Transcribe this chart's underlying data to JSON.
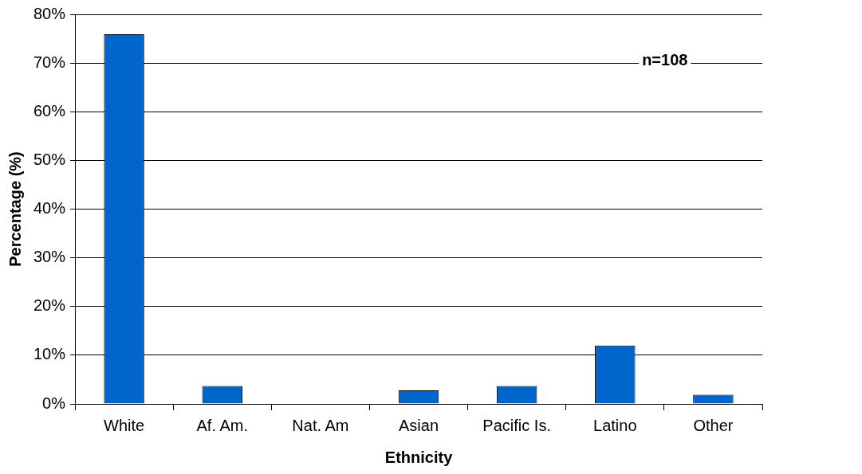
{
  "chart_data": {
    "type": "bar",
    "xlabel": "Ethnicity",
    "ylabel": "Percentage (%)",
    "categories": [
      "White",
      "Af. Am.",
      "Nat. Am",
      "Asian",
      "Pacific Is.",
      "Latino",
      "Other"
    ],
    "values": [
      75.9,
      3.7,
      0,
      2.8,
      3.7,
      12.0,
      1.9
    ],
    "color": "#0066cc",
    "ylim": [
      0,
      80
    ],
    "yticks": [
      {
        "value": 0,
        "label": "0%"
      },
      {
        "value": 10,
        "label": "10%"
      },
      {
        "value": 20,
        "label": "20%"
      },
      {
        "value": 30,
        "label": "30%"
      },
      {
        "value": 40,
        "label": "40%"
      },
      {
        "value": 50,
        "label": "50%"
      },
      {
        "value": 60,
        "label": "60%"
      },
      {
        "value": 70,
        "label": "70%"
      },
      {
        "value": 80,
        "label": "80%"
      }
    ],
    "grid": "y",
    "legend": false,
    "annotations": [
      "n=108"
    ]
  }
}
